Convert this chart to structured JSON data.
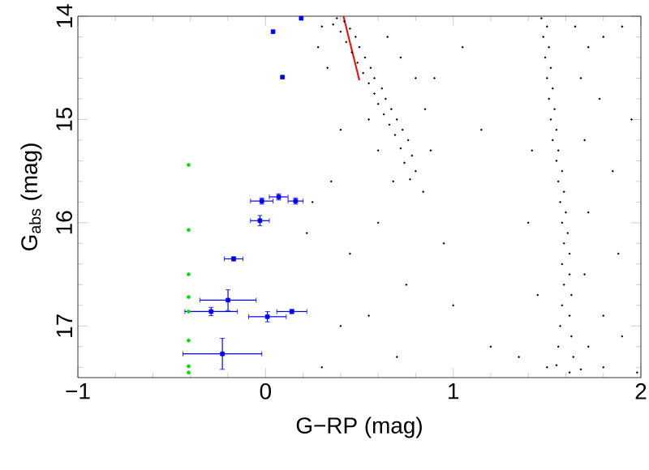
{
  "chart_data": {
    "type": "scatter",
    "xlabel": "G−RP (mag)",
    "ylabel": "G$_{abs}$ (mag)",
    "xlim": [
      -1,
      2
    ],
    "ylim": [
      17.5,
      14
    ],
    "xticks": [
      {
        "value": -1,
        "label": "−1"
      },
      {
        "value": -0.8,
        "label": null
      },
      {
        "value": -0.6,
        "label": null
      },
      {
        "value": -0.4,
        "label": null
      },
      {
        "value": -0.2,
        "label": null
      },
      0,
      {
        "value": 0.2,
        "label": null
      },
      {
        "value": 0.4,
        "label": null
      },
      {
        "value": 0.6,
        "label": null
      },
      {
        "value": 0.8,
        "label": null
      },
      1,
      {
        "value": 1.2,
        "label": null
      },
      {
        "value": 1.4,
        "label": null
      },
      {
        "value": 1.6,
        "label": null
      },
      {
        "value": 1.8,
        "label": null
      },
      2
    ],
    "yticks": [
      14,
      {
        "value": 14.2,
        "label": null
      },
      {
        "value": 14.4,
        "label": null
      },
      {
        "value": 14.6,
        "label": null
      },
      {
        "value": 14.8,
        "label": null
      },
      15,
      {
        "value": 15.2,
        "label": null
      },
      {
        "value": 15.4,
        "label": null
      },
      {
        "value": 15.6,
        "label": null
      },
      {
        "value": 15.8,
        "label": null
      },
      16,
      {
        "value": 16.2,
        "label": null
      },
      {
        "value": 16.4,
        "label": null
      },
      {
        "value": 16.6,
        "label": null
      },
      {
        "value": 16.8,
        "label": null
      },
      17,
      {
        "value": 17.2,
        "label": null
      },
      {
        "value": 17.4,
        "label": null
      }
    ],
    "grid": false,
    "series": [
      {
        "marker": "circle",
        "color": "#000000",
        "x": [
          0.38,
          0.42,
          0.36,
          0.45,
          0.4,
          0.48,
          0.43,
          0.5,
          0.46,
          0.53,
          0.49,
          0.56,
          0.52,
          0.58,
          0.55,
          0.62,
          0.58,
          0.64,
          0.6,
          0.67,
          0.63,
          0.7,
          0.66,
          0.73,
          0.69,
          0.76,
          0.72,
          0.78,
          0.74,
          0.8,
          0.77,
          0.3,
          0.28,
          0.33,
          0.65,
          0.72,
          0.8,
          0.85,
          0.55,
          0.6,
          0.88,
          0.68,
          0.84,
          0.4,
          0.35,
          0.25,
          0.22,
          0.45,
          0.6,
          0.75,
          0.55,
          0.95,
          0.4,
          0.7,
          1.05,
          1.15,
          1.0,
          1.2,
          0.9,
          0.3,
          1.47,
          1.5,
          1.48,
          1.51,
          1.49,
          1.52,
          1.5,
          1.53,
          1.51,
          1.54,
          1.52,
          1.55,
          1.53,
          1.56,
          1.55,
          1.58,
          1.56,
          1.59,
          1.57,
          1.6,
          1.58,
          1.61,
          1.59,
          1.62,
          1.58,
          1.62,
          1.59,
          1.63,
          1.58,
          1.62,
          1.57,
          1.63,
          1.56,
          1.64,
          1.55,
          1.62,
          1.5,
          1.68,
          1.65,
          1.72,
          1.8,
          1.9,
          1.68,
          1.78,
          1.95,
          1.7,
          1.85,
          1.42,
          1.4,
          1.72,
          1.88,
          1.7,
          1.45,
          1.8,
          1.9,
          1.72,
          1.35,
          1.8,
          1.98
        ],
        "values": [
          14.02,
          14.05,
          14.08,
          14.12,
          14.15,
          14.2,
          14.25,
          14.3,
          14.35,
          14.4,
          14.45,
          14.5,
          14.55,
          14.6,
          14.65,
          14.7,
          14.75,
          14.8,
          14.85,
          14.9,
          14.95,
          15.0,
          15.05,
          15.1,
          15.15,
          15.2,
          15.28,
          15.35,
          15.42,
          15.5,
          15.58,
          14.1,
          14.3,
          14.5,
          14.2,
          14.4,
          14.6,
          14.9,
          15.0,
          15.3,
          15.3,
          15.6,
          15.7,
          15.1,
          15.6,
          15.8,
          16.1,
          16.3,
          16.0,
          16.6,
          16.9,
          16.2,
          17.0,
          17.3,
          14.3,
          15.1,
          16.8,
          17.2,
          14.6,
          17.4,
          14.02,
          14.1,
          14.2,
          14.3,
          14.4,
          14.5,
          14.6,
          14.7,
          14.8,
          14.9,
          15.0,
          15.1,
          15.2,
          15.3,
          15.4,
          15.5,
          15.6,
          15.7,
          15.8,
          15.9,
          16.0,
          16.1,
          16.2,
          16.3,
          16.4,
          16.5,
          16.6,
          16.7,
          16.8,
          16.9,
          17.0,
          17.1,
          17.2,
          17.3,
          17.38,
          17.45,
          17.4,
          17.42,
          14.1,
          14.3,
          14.2,
          14.1,
          14.6,
          14.8,
          15.0,
          15.2,
          15.5,
          15.3,
          16.0,
          15.9,
          16.3,
          16.5,
          16.7,
          16.9,
          17.1,
          17.2,
          17.3,
          17.4,
          17.45
        ]
      },
      {
        "marker": "circle",
        "color": "#00e000",
        "x": [
          -0.41,
          -0.41,
          -0.41,
          -0.41,
          -0.41,
          -0.41,
          -0.41,
          -0.41
        ],
        "values": [
          15.44,
          16.07,
          16.5,
          16.72,
          16.86,
          17.14,
          17.39,
          17.45
        ]
      },
      {
        "marker": "square",
        "color": "#0000ff",
        "x": [
          0.04,
          0.19,
          0.09,
          -0.02,
          0.07,
          0.16,
          -0.03,
          -0.17,
          -0.2,
          -0.29,
          0.01,
          0.14,
          -0.23
        ],
        "values": [
          14.15,
          14.02,
          14.59,
          15.79,
          15.75,
          15.79,
          15.98,
          16.35,
          16.75,
          16.86,
          16.91,
          16.86,
          17.27
        ],
        "xerrors": [
          null,
          null,
          null,
          0.06,
          0.05,
          0.04,
          0.05,
          0.05,
          0.15,
          0.14,
          0.1,
          0.08,
          0.21
        ],
        "errors": [
          null,
          null,
          null,
          0.03,
          0.03,
          0.03,
          0.05,
          0.02,
          0.1,
          0.04,
          0.05,
          0.02,
          0.15
        ]
      },
      {
        "type": "line",
        "marker": "none",
        "color": "#ff0000",
        "x": [
          0.415,
          0.5
        ],
        "values": [
          14.0,
          14.62
        ]
      }
    ]
  }
}
